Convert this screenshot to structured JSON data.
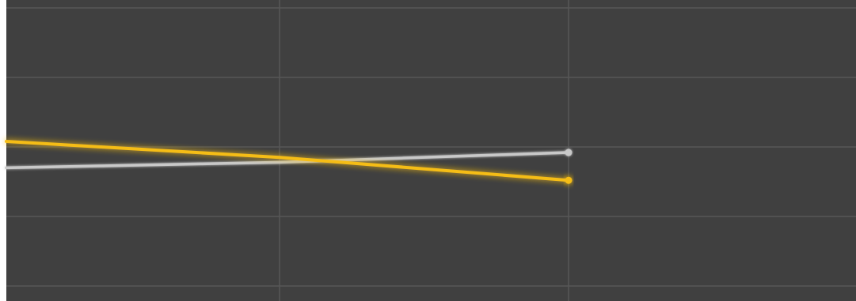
{
  "chart_data": {
    "type": "line",
    "title": "",
    "xlabel": "",
    "ylabel": "",
    "x": [
      0,
      1,
      2
    ],
    "xlim": [
      0,
      2.99
    ],
    "ylim": [
      0,
      4
    ],
    "grid": true,
    "legend": "none",
    "series": [
      {
        "values": [
          2.08,
          1.85,
          1.52
        ],
        "color": "#f5bd16",
        "glow": true,
        "end_marker": true
      },
      {
        "values": [
          1.7,
          1.78,
          1.92
        ],
        "color": "#c8c8c8",
        "glow": false,
        "end_marker": true
      }
    ]
  },
  "colors": {
    "background": "#404040",
    "grid": "#575757",
    "left_strip": "#ffffff"
  }
}
